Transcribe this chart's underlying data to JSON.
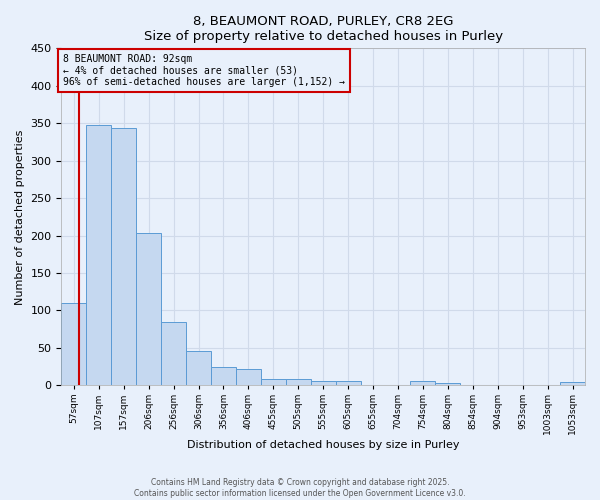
{
  "title1": "8, BEAUMONT ROAD, PURLEY, CR8 2EG",
  "title2": "Size of property relative to detached houses in Purley",
  "xlabel": "Distribution of detached houses by size in Purley",
  "ylabel": "Number of detached properties",
  "bin_labels": [
    "57sqm",
    "107sqm",
    "157sqm",
    "206sqm",
    "256sqm",
    "306sqm",
    "356sqm",
    "406sqm",
    "455sqm",
    "505sqm",
    "555sqm",
    "605sqm",
    "655sqm",
    "704sqm",
    "754sqm",
    "804sqm",
    "854sqm",
    "904sqm",
    "953sqm",
    "1003sqm",
    "1053sqm"
  ],
  "counts": [
    110,
    348,
    343,
    203,
    85,
    46,
    25,
    22,
    9,
    9,
    6,
    6,
    1,
    1,
    6,
    3,
    1,
    1,
    1,
    1,
    4
  ],
  "bar_fill": "#c5d8f0",
  "bar_edge": "#5b9bd5",
  "red_line_x": 0.73,
  "red_line_color": "#cc0000",
  "annotation_text": "8 BEAUMONT ROAD: 92sqm\n← 4% of detached houses are smaller (53)\n96% of semi-detached houses are larger (1,152) →",
  "annotation_box_color": "#cc0000",
  "ylim": [
    0,
    450
  ],
  "yticks": [
    0,
    50,
    100,
    150,
    200,
    250,
    300,
    350,
    400,
    450
  ],
  "background_color": "#e8f0fb",
  "grid_color": "#d0daea",
  "footer1": "Contains HM Land Registry data © Crown copyright and database right 2025.",
  "footer2": "Contains public sector information licensed under the Open Government Licence v3.0."
}
